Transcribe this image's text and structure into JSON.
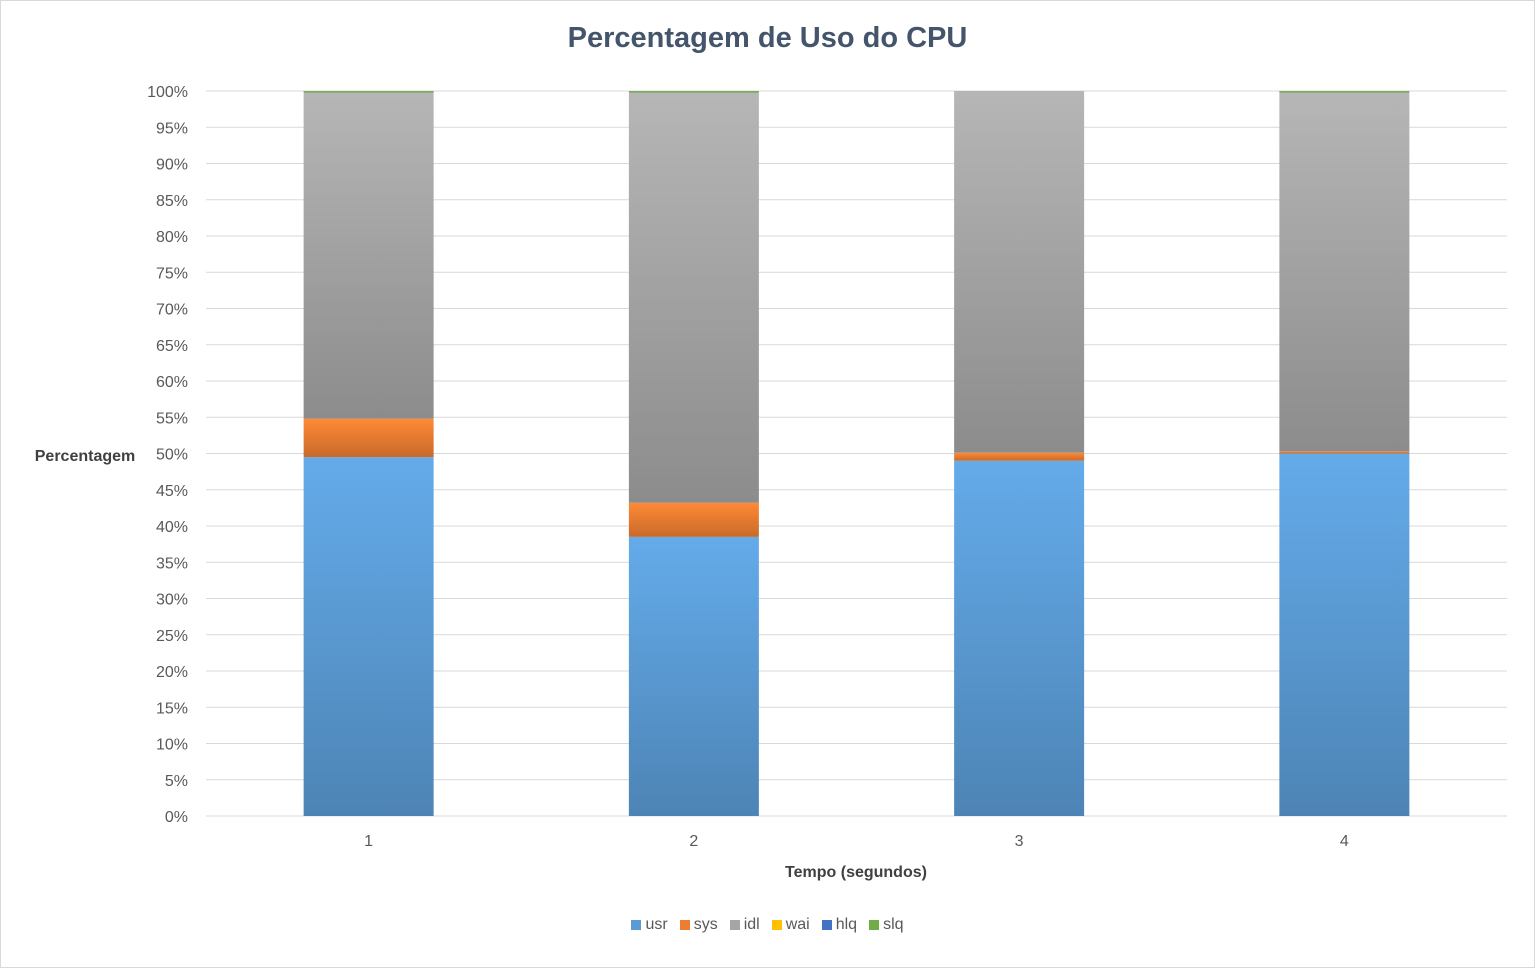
{
  "chart_data": {
    "type": "bar",
    "stacked": true,
    "percent_stacked": true,
    "title": "Percentagem de Uso do CPU",
    "xlabel": "Tempo (segundos)",
    "ylabel": "Percentagem",
    "categories": [
      "1",
      "2",
      "3",
      "4"
    ],
    "ylim": [
      0,
      100
    ],
    "yticks": [
      "0%",
      "5%",
      "10%",
      "15%",
      "20%",
      "25%",
      "30%",
      "35%",
      "40%",
      "45%",
      "50%",
      "55%",
      "60%",
      "65%",
      "70%",
      "75%",
      "80%",
      "85%",
      "90%",
      "95%",
      "100%"
    ],
    "grid": true,
    "legend_position": "bottom",
    "series": [
      {
        "name": "usr",
        "color": "#5b9bd5",
        "values": [
          49.5,
          38.5,
          49.0,
          50.0
        ]
      },
      {
        "name": "sys",
        "color": "#ed7d31",
        "values": [
          5.3,
          4.7,
          1.1,
          0.3
        ]
      },
      {
        "name": "idl",
        "color": "#a5a5a5",
        "values": [
          45.0,
          56.6,
          49.9,
          49.5
        ]
      },
      {
        "name": "wai",
        "color": "#ffc000",
        "values": [
          0.0,
          0.0,
          0.0,
          0.0
        ]
      },
      {
        "name": "hlq",
        "color": "#4472c4",
        "values": [
          0.0,
          0.0,
          0.0,
          0.0
        ]
      },
      {
        "name": "slq",
        "color": "#70ad47",
        "values": [
          0.2,
          0.2,
          0.0,
          0.2
        ]
      }
    ]
  }
}
